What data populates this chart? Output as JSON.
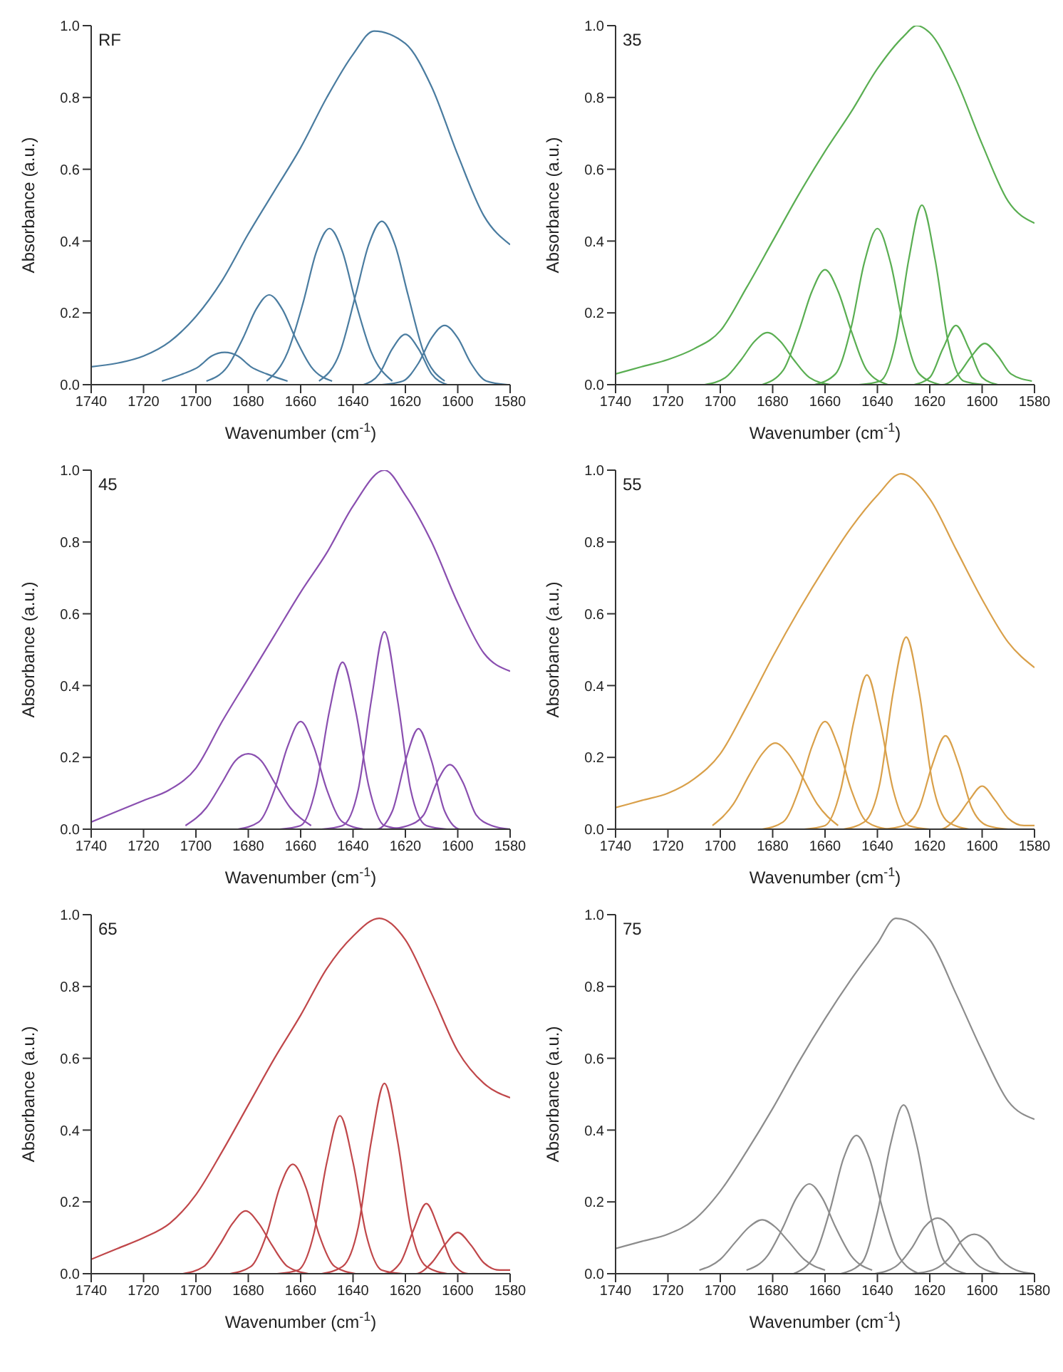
{
  "chart_data": [
    {
      "type": "line",
      "annotations": [
        "RF"
      ],
      "xlabel": "Wavenumber (cm$^{-1}$)",
      "ylabel": "Absorbance (a.u.)",
      "xlim": [
        1740,
        1580
      ],
      "xticks": [
        1740,
        1720,
        1700,
        1680,
        1660,
        1640,
        1620,
        1600,
        1580
      ],
      "ylim": [
        0,
        1
      ],
      "yticks": [
        {
          "value": 0,
          "label": "0.0"
        },
        {
          "value": 0.2,
          "label": "0.2"
        },
        {
          "value": 0.4,
          "label": "0.4"
        },
        {
          "value": 0.6,
          "label": "0.6"
        },
        {
          "value": 0.8,
          "label": "0.8"
        },
        {
          "value": 1,
          "label": "1.0"
        }
      ],
      "marker": "none",
      "line_style": "solid",
      "series": [
        {
          "color": "#4a7ca0",
          "x": [
            1740,
            1730,
            1720,
            1710,
            1700,
            1690,
            1680,
            1670,
            1660,
            1650,
            1640,
            1632,
            1620,
            1610,
            1600,
            1590,
            1580
          ],
          "values": [
            0.05,
            0.06,
            0.08,
            0.12,
            0.19,
            0.29,
            0.42,
            0.54,
            0.66,
            0.8,
            0.92,
            0.985,
            0.95,
            0.83,
            0.64,
            0.47,
            0.39
          ]
        },
        {
          "color": "#4a7ca0",
          "x": [
            1665,
            1673,
            1679,
            1684,
            1689,
            1694,
            1699,
            1705,
            1713
          ],
          "values": [
            0.01,
            0.03,
            0.05,
            0.08,
            0.09,
            0.08,
            0.05,
            0.03,
            0.01
          ]
        },
        {
          "color": "#4a7ca0",
          "x": [
            1648,
            1656,
            1662,
            1667,
            1672,
            1677,
            1682,
            1688,
            1696
          ],
          "values": [
            0.01,
            0.05,
            0.13,
            0.21,
            0.25,
            0.21,
            0.13,
            0.05,
            0.01
          ]
        },
        {
          "color": "#4a7ca0",
          "x": [
            1625,
            1633,
            1639,
            1644,
            1649,
            1654,
            1659,
            1665,
            1673
          ],
          "values": [
            0.01,
            0.09,
            0.23,
            0.37,
            0.435,
            0.37,
            0.23,
            0.09,
            0.01
          ]
        },
        {
          "color": "#4a7ca0",
          "x": [
            1605,
            1613,
            1619,
            1624,
            1629,
            1634,
            1639,
            1645,
            1653
          ],
          "values": [
            0.01,
            0.09,
            0.25,
            0.39,
            0.455,
            0.39,
            0.25,
            0.09,
            0.01
          ]
        },
        {
          "color": "#4a7ca0",
          "x": [
            1604,
            1610,
            1615,
            1620,
            1625,
            1630,
            1636
          ],
          "values": [
            0,
            0.03,
            0.1,
            0.14,
            0.1,
            0.03,
            0
          ]
        },
        {
          "color": "#4a7ca0",
          "x": [
            1581,
            1589,
            1595,
            1600,
            1605,
            1610,
            1615,
            1621,
            1629
          ],
          "values": [
            0,
            0.01,
            0.06,
            0.13,
            0.165,
            0.13,
            0.06,
            0.01,
            0
          ]
        }
      ]
    },
    {
      "type": "line",
      "annotations": [
        "35"
      ],
      "xlabel": "Wavenumber (cm$^{-1}$)",
      "ylabel": "Absorbance (a.u.)",
      "xlim": [
        1740,
        1580
      ],
      "xticks": [
        1740,
        1720,
        1700,
        1680,
        1660,
        1640,
        1620,
        1600,
        1580
      ],
      "ylim": [
        0,
        1
      ],
      "yticks": [
        {
          "value": 0,
          "label": "0.0"
        },
        {
          "value": 0.2,
          "label": "0.2"
        },
        {
          "value": 0.4,
          "label": "0.4"
        },
        {
          "value": 0.6,
          "label": "0.6"
        },
        {
          "value": 0.8,
          "label": "0.8"
        },
        {
          "value": 1,
          "label": "1.0"
        }
      ],
      "marker": "none",
      "line_style": "solid",
      "series": [
        {
          "color": "#5aae52",
          "x": [
            1740,
            1730,
            1720,
            1710,
            1700,
            1690,
            1680,
            1670,
            1660,
            1650,
            1640,
            1630,
            1625,
            1620,
            1610,
            1600,
            1590,
            1580
          ],
          "values": [
            0.03,
            0.05,
            0.07,
            0.1,
            0.15,
            0.27,
            0.4,
            0.53,
            0.65,
            0.76,
            0.88,
            0.97,
            1,
            0.98,
            0.85,
            0.67,
            0.51,
            0.45
          ]
        },
        {
          "color": "#5aae52",
          "x": [
            1658,
            1666,
            1672,
            1677,
            1682,
            1687,
            1692,
            1698,
            1706
          ],
          "values": [
            0,
            0.02,
            0.07,
            0.12,
            0.145,
            0.12,
            0.07,
            0.02,
            0
          ]
        },
        {
          "color": "#5aae52",
          "x": [
            1636,
            1644,
            1650,
            1655,
            1660,
            1665,
            1670,
            1676,
            1684
          ],
          "values": [
            0,
            0.04,
            0.15,
            0.26,
            0.32,
            0.26,
            0.15,
            0.04,
            0
          ]
        },
        {
          "color": "#5aae52",
          "x": [
            1616,
            1624,
            1630,
            1635,
            1640,
            1645,
            1650,
            1656,
            1664
          ],
          "values": [
            0,
            0.03,
            0.16,
            0.34,
            0.435,
            0.34,
            0.16,
            0.03,
            0
          ]
        },
        {
          "color": "#5aae52",
          "x": [
            1599,
            1607,
            1613,
            1618,
            1623,
            1628,
            1633,
            1639,
            1647
          ],
          "values": [
            0,
            0.01,
            0.12,
            0.35,
            0.5,
            0.35,
            0.12,
            0.01,
            0
          ]
        },
        {
          "color": "#5aae52",
          "x": [
            1594,
            1600,
            1605,
            1610,
            1615,
            1620,
            1626
          ],
          "values": [
            0,
            0.02,
            0.1,
            0.165,
            0.1,
            0.02,
            0
          ]
        },
        {
          "color": "#5aae52",
          "x": [
            1581,
            1589,
            1594,
            1599,
            1604,
            1609,
            1615,
            1623
          ],
          "values": [
            0.01,
            0.03,
            0.08,
            0.115,
            0.08,
            0.03,
            0,
            0
          ]
        }
      ]
    },
    {
      "type": "line",
      "annotations": [
        "45"
      ],
      "xlabel": "Wavenumber (cm$^{-1}$)",
      "ylabel": "Absorbance (a.u.)",
      "xlim": [
        1740,
        1580
      ],
      "xticks": [
        1740,
        1720,
        1700,
        1680,
        1660,
        1640,
        1620,
        1600,
        1580
      ],
      "ylim": [
        0,
        1
      ],
      "yticks": [
        {
          "value": 0,
          "label": "0.0"
        },
        {
          "value": 0.2,
          "label": "0.2"
        },
        {
          "value": 0.4,
          "label": "0.4"
        },
        {
          "value": 0.6,
          "label": "0.6"
        },
        {
          "value": 0.8,
          "label": "0.8"
        },
        {
          "value": 1,
          "label": "1.0"
        }
      ],
      "marker": "none",
      "line_style": "solid",
      "series": [
        {
          "color": "#8a4fb0",
          "x": [
            1740,
            1730,
            1720,
            1710,
            1700,
            1690,
            1680,
            1670,
            1660,
            1650,
            1640,
            1628,
            1620,
            1610,
            1600,
            1590,
            1580
          ],
          "values": [
            0.02,
            0.05,
            0.08,
            0.11,
            0.17,
            0.3,
            0.42,
            0.54,
            0.66,
            0.77,
            0.9,
            1,
            0.93,
            0.8,
            0.63,
            0.49,
            0.44
          ]
        },
        {
          "color": "#8a4fb0",
          "x": [
            1656,
            1664,
            1670,
            1675,
            1680,
            1685,
            1690,
            1696,
            1704
          ],
          "values": [
            0.01,
            0.06,
            0.13,
            0.19,
            0.21,
            0.19,
            0.13,
            0.06,
            0.01
          ]
        },
        {
          "color": "#8a4fb0",
          "x": [
            1636,
            1644,
            1650,
            1655,
            1660,
            1665,
            1670,
            1676,
            1684
          ],
          "values": [
            0,
            0.02,
            0.11,
            0.23,
            0.3,
            0.23,
            0.11,
            0.02,
            0
          ]
        },
        {
          "color": "#8a4fb0",
          "x": [
            1620,
            1628,
            1634,
            1639,
            1644,
            1649,
            1654,
            1660,
            1668
          ],
          "values": [
            0,
            0.01,
            0.12,
            0.33,
            0.465,
            0.33,
            0.12,
            0.01,
            0
          ]
        },
        {
          "color": "#8a4fb0",
          "x": [
            1604,
            1612,
            1618,
            1623,
            1628,
            1633,
            1638,
            1644,
            1652
          ],
          "values": [
            0,
            0.01,
            0.11,
            0.36,
            0.55,
            0.36,
            0.11,
            0.01,
            0
          ]
        },
        {
          "color": "#8a4fb0",
          "x": [
            1591,
            1599,
            1605,
            1610,
            1615,
            1620,
            1625,
            1631,
            1639
          ],
          "values": [
            0,
            0,
            0.05,
            0.19,
            0.28,
            0.19,
            0.05,
            0,
            0
          ]
        },
        {
          "color": "#8a4fb0",
          "x": [
            1580,
            1587,
            1593,
            1598,
            1603,
            1608,
            1613,
            1619,
            1627
          ],
          "values": [
            0,
            0.01,
            0.04,
            0.13,
            0.18,
            0.13,
            0.04,
            0.01,
            0
          ]
        }
      ]
    },
    {
      "type": "line",
      "annotations": [
        "55"
      ],
      "xlabel": "Wavenumber (cm$^{-1}$)",
      "ylabel": "Absorbance (a.u.)",
      "xlim": [
        1740,
        1580
      ],
      "xticks": [
        1740,
        1720,
        1700,
        1680,
        1660,
        1640,
        1620,
        1600,
        1580
      ],
      "ylim": [
        0,
        1
      ],
      "yticks": [
        {
          "value": 0,
          "label": "0.0"
        },
        {
          "value": 0.2,
          "label": "0.2"
        },
        {
          "value": 0.4,
          "label": "0.4"
        },
        {
          "value": 0.6,
          "label": "0.6"
        },
        {
          "value": 0.8,
          "label": "0.8"
        },
        {
          "value": 1,
          "label": "1.0"
        }
      ],
      "marker": "none",
      "line_style": "solid",
      "series": [
        {
          "color": "#d9a04a",
          "x": [
            1740,
            1730,
            1720,
            1710,
            1700,
            1690,
            1680,
            1670,
            1660,
            1650,
            1640,
            1631,
            1620,
            1610,
            1600,
            1590,
            1580
          ],
          "values": [
            0.06,
            0.08,
            0.1,
            0.14,
            0.21,
            0.34,
            0.48,
            0.61,
            0.73,
            0.84,
            0.93,
            0.99,
            0.92,
            0.78,
            0.64,
            0.52,
            0.45
          ]
        },
        {
          "color": "#d9a04a",
          "x": [
            1655,
            1663,
            1669,
            1674,
            1679,
            1684,
            1689,
            1695,
            1703
          ],
          "values": [
            0.01,
            0.07,
            0.15,
            0.21,
            0.24,
            0.21,
            0.15,
            0.07,
            0.01
          ]
        },
        {
          "color": "#d9a04a",
          "x": [
            1636,
            1644,
            1650,
            1655,
            1660,
            1665,
            1670,
            1676,
            1684
          ],
          "values": [
            0,
            0.02,
            0.11,
            0.23,
            0.3,
            0.23,
            0.11,
            0.02,
            0
          ]
        },
        {
          "color": "#d9a04a",
          "x": [
            1620,
            1628,
            1634,
            1639,
            1644,
            1649,
            1654,
            1660,
            1668
          ],
          "values": [
            0,
            0.01,
            0.11,
            0.3,
            0.43,
            0.3,
            0.11,
            0.01,
            0
          ]
        },
        {
          "color": "#d9a04a",
          "x": [
            1605,
            1613,
            1619,
            1624,
            1629,
            1634,
            1639,
            1645,
            1653
          ],
          "values": [
            0,
            0.02,
            0.13,
            0.38,
            0.535,
            0.38,
            0.13,
            0.02,
            0
          ]
        },
        {
          "color": "#d9a04a",
          "x": [
            1590,
            1598,
            1604,
            1609,
            1614,
            1619,
            1624,
            1630,
            1638
          ],
          "values": [
            0,
            0.01,
            0.06,
            0.18,
            0.26,
            0.18,
            0.06,
            0.01,
            0
          ]
        },
        {
          "color": "#d9a04a",
          "x": [
            1580,
            1584,
            1590,
            1595,
            1600,
            1605,
            1610,
            1616,
            1624
          ],
          "values": [
            0.01,
            0.01,
            0.03,
            0.08,
            0.12,
            0.08,
            0.03,
            0,
            0
          ]
        }
      ]
    },
    {
      "type": "line",
      "annotations": [
        "65"
      ],
      "xlabel": "Wavenumber (cm$^{-1}$)",
      "ylabel": "Absorbance (a.u.)",
      "xlim": [
        1740,
        1580
      ],
      "xticks": [
        1740,
        1720,
        1700,
        1680,
        1660,
        1640,
        1620,
        1600,
        1580
      ],
      "ylim": [
        0,
        1
      ],
      "yticks": [
        {
          "value": 0,
          "label": "0.0"
        },
        {
          "value": 0.2,
          "label": "0.2"
        },
        {
          "value": 0.4,
          "label": "0.4"
        },
        {
          "value": 0.6,
          "label": "0.6"
        },
        {
          "value": 0.8,
          "label": "0.8"
        },
        {
          "value": 1,
          "label": "1.0"
        }
      ],
      "marker": "none",
      "line_style": "solid",
      "series": [
        {
          "color": "#c0474a",
          "x": [
            1740,
            1730,
            1720,
            1710,
            1700,
            1690,
            1680,
            1670,
            1660,
            1650,
            1640,
            1630,
            1620,
            1610,
            1600,
            1590,
            1580
          ],
          "values": [
            0.04,
            0.07,
            0.1,
            0.14,
            0.22,
            0.34,
            0.47,
            0.6,
            0.72,
            0.85,
            0.94,
            0.99,
            0.93,
            0.78,
            0.62,
            0.53,
            0.49
          ]
        },
        {
          "color": "#c0474a",
          "x": [
            1657,
            1665,
            1671,
            1676,
            1681,
            1686,
            1691,
            1697,
            1705
          ],
          "values": [
            0,
            0.02,
            0.08,
            0.14,
            0.175,
            0.14,
            0.08,
            0.02,
            0
          ]
        },
        {
          "color": "#c0474a",
          "x": [
            1639,
            1647,
            1653,
            1658,
            1663,
            1668,
            1673,
            1679,
            1687
          ],
          "values": [
            0,
            0.02,
            0.11,
            0.24,
            0.305,
            0.24,
            0.11,
            0.02,
            0
          ]
        },
        {
          "color": "#c0474a",
          "x": [
            1621,
            1629,
            1635,
            1640,
            1645,
            1650,
            1655,
            1661,
            1669
          ],
          "values": [
            0,
            0.01,
            0.11,
            0.31,
            0.44,
            0.31,
            0.11,
            0.01,
            0
          ]
        },
        {
          "color": "#c0474a",
          "x": [
            1604,
            1612,
            1618,
            1623,
            1628,
            1633,
            1638,
            1644,
            1652
          ],
          "values": [
            0,
            0.02,
            0.13,
            0.37,
            0.53,
            0.37,
            0.13,
            0.02,
            0
          ]
        },
        {
          "color": "#c0474a",
          "x": [
            1588,
            1596,
            1602,
            1607,
            1612,
            1617,
            1622,
            1628,
            1636
          ],
          "values": [
            0,
            0,
            0.03,
            0.12,
            0.195,
            0.12,
            0.03,
            0,
            0
          ]
        },
        {
          "color": "#c0474a",
          "x": [
            1580,
            1584,
            1590,
            1595,
            1600,
            1605,
            1610,
            1616,
            1624
          ],
          "values": [
            0.01,
            0.01,
            0.03,
            0.08,
            0.115,
            0.08,
            0.03,
            0,
            0
          ]
        }
      ]
    },
    {
      "type": "line",
      "annotations": [
        "75"
      ],
      "xlabel": "Wavenumber (cm$^{-1}$)",
      "ylabel": "Absorbance (a.u.)",
      "xlim": [
        1740,
        1580
      ],
      "xticks": [
        1740,
        1720,
        1700,
        1680,
        1660,
        1640,
        1620,
        1600,
        1580
      ],
      "ylim": [
        0,
        1
      ],
      "yticks": [
        {
          "value": 0,
          "label": "0.0"
        },
        {
          "value": 0.2,
          "label": "0.2"
        },
        {
          "value": 0.4,
          "label": "0.4"
        },
        {
          "value": 0.6,
          "label": "0.6"
        },
        {
          "value": 0.8,
          "label": "0.8"
        },
        {
          "value": 1,
          "label": "1.0"
        }
      ],
      "marker": "none",
      "line_style": "solid",
      "series": [
        {
          "color": "#8c8c8c",
          "x": [
            1740,
            1730,
            1720,
            1710,
            1700,
            1690,
            1680,
            1670,
            1660,
            1650,
            1640,
            1633,
            1620,
            1610,
            1600,
            1590,
            1580
          ],
          "values": [
            0.07,
            0.09,
            0.11,
            0.15,
            0.23,
            0.34,
            0.46,
            0.59,
            0.71,
            0.82,
            0.92,
            0.99,
            0.93,
            0.78,
            0.62,
            0.48,
            0.43
          ]
        },
        {
          "color": "#8c8c8c",
          "x": [
            1660,
            1668,
            1674,
            1679,
            1684,
            1689,
            1694,
            1700,
            1708
          ],
          "values": [
            0.01,
            0.04,
            0.09,
            0.13,
            0.15,
            0.13,
            0.09,
            0.04,
            0.01
          ]
        },
        {
          "color": "#8c8c8c",
          "x": [
            1642,
            1650,
            1656,
            1661,
            1666,
            1671,
            1676,
            1682,
            1690
          ],
          "values": [
            0.01,
            0.05,
            0.13,
            0.21,
            0.25,
            0.21,
            0.13,
            0.05,
            0.01
          ]
        },
        {
          "color": "#8c8c8c",
          "x": [
            1624,
            1632,
            1638,
            1643,
            1648,
            1653,
            1658,
            1664,
            1672
          ],
          "values": [
            0,
            0.05,
            0.18,
            0.32,
            0.385,
            0.32,
            0.18,
            0.05,
            0
          ]
        },
        {
          "color": "#8c8c8c",
          "x": [
            1606,
            1614,
            1620,
            1625,
            1630,
            1635,
            1640,
            1646,
            1654
          ],
          "values": [
            0,
            0.03,
            0.17,
            0.36,
            0.47,
            0.36,
            0.17,
            0.03,
            0
          ]
        },
        {
          "color": "#8c8c8c",
          "x": [
            1593,
            1601,
            1607,
            1612,
            1617,
            1622,
            1627,
            1633,
            1641
          ],
          "values": [
            0,
            0.02,
            0.07,
            0.13,
            0.155,
            0.13,
            0.07,
            0.02,
            0
          ]
        },
        {
          "color": "#8c8c8c",
          "x": [
            1580,
            1587,
            1593,
            1598,
            1603,
            1608,
            1613,
            1619,
            1627
          ],
          "values": [
            0,
            0.01,
            0.04,
            0.09,
            0.11,
            0.09,
            0.04,
            0.01,
            0
          ]
        }
      ]
    }
  ]
}
